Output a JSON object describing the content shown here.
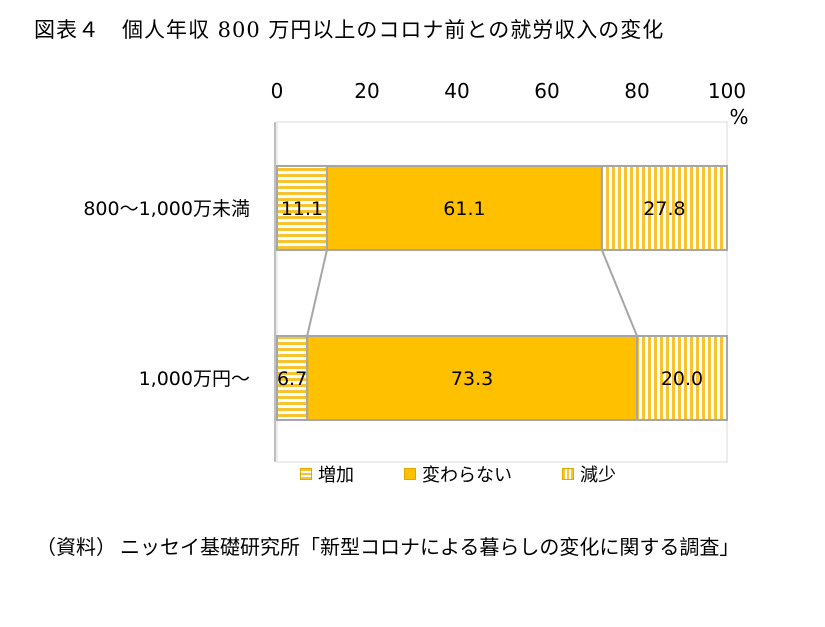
{
  "title": "図表４　個人年収 800 万円以上のコロナ前との就労収入の変化",
  "source": {
    "label": "（資料）",
    "text": "ニッセイ基礎研究所「新型コロナによる暮らしの変化に関する調査」"
  },
  "colors": {
    "increase": "#f7c430",
    "nochange": "#ffc000",
    "decrease": "#f7c430",
    "border": "#a6a6a6",
    "connector": "#a6a6a6"
  },
  "chart_data": {
    "type": "bar",
    "orientation": "horizontal",
    "stacked": true,
    "percent": true,
    "categories": [
      "800～1,000万未満",
      "1,000万円～"
    ],
    "series": [
      {
        "name": "増加",
        "values": [
          11.1,
          6.7
        ],
        "pattern": "horizontal-stripes"
      },
      {
        "name": "変わらない",
        "values": [
          61.1,
          73.3
        ],
        "pattern": "solid"
      },
      {
        "name": "減少",
        "values": [
          27.8,
          20.0
        ],
        "pattern": "vertical-stripes"
      }
    ],
    "data_labels": [
      [
        "11.1",
        "61.1",
        "27.8"
      ],
      [
        "6.7",
        "73.3",
        "20.0"
      ]
    ],
    "xlim": [
      0,
      100
    ],
    "xticks": [
      "0",
      "20",
      "40",
      "60",
      "80",
      "100"
    ],
    "xunit": "%",
    "xaxis_position": "top",
    "legend_position": "bottom",
    "series_lines": true,
    "grid": false
  }
}
